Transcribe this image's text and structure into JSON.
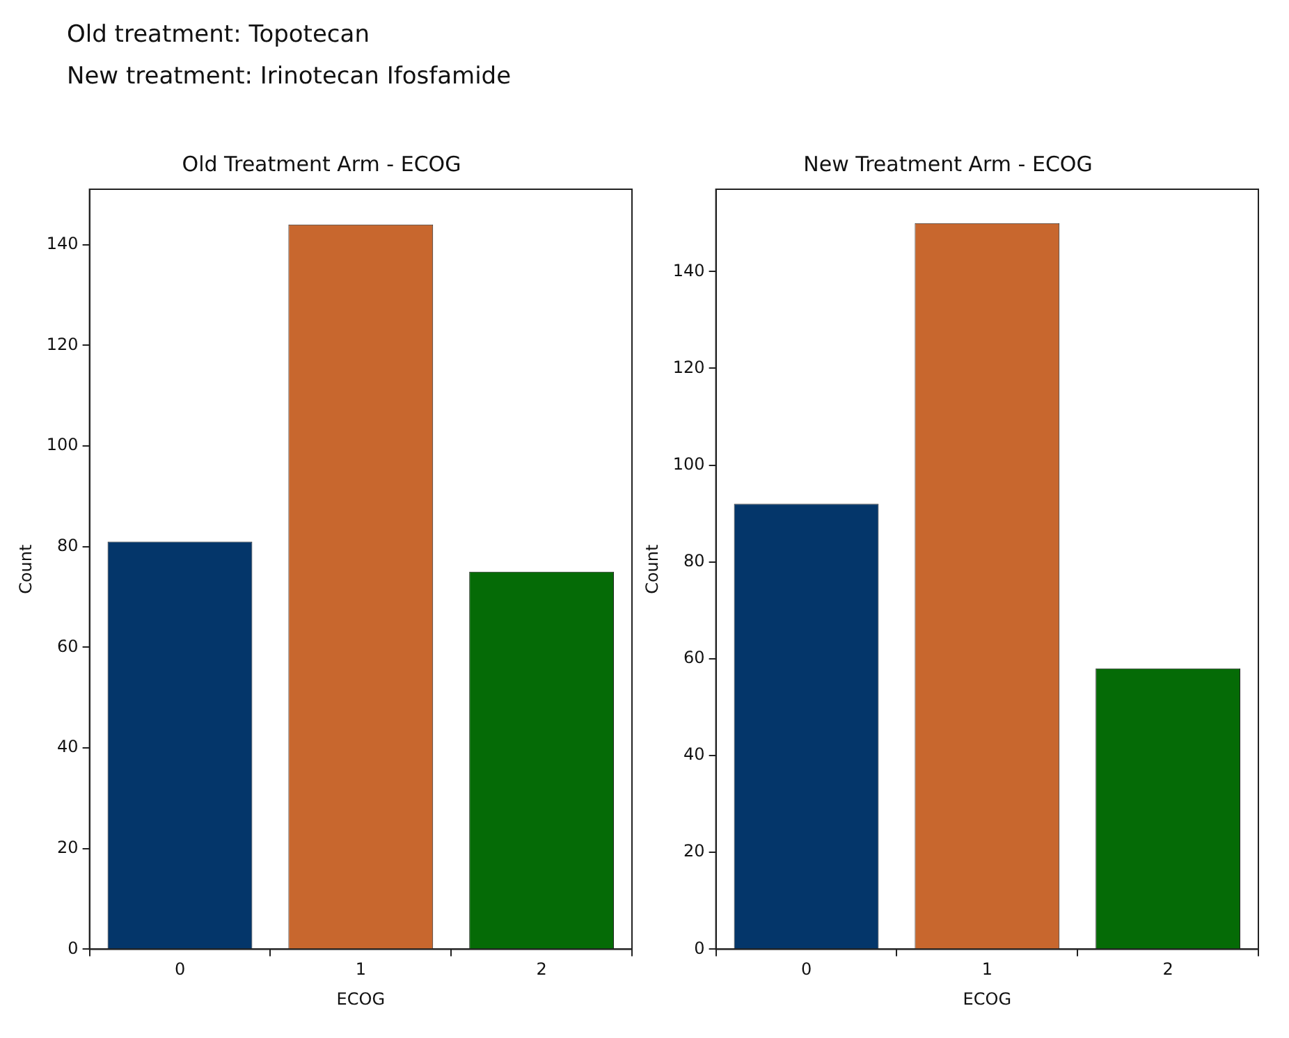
{
  "chart_data": [
    {
      "type": "bar",
      "title": "Old Treatment Arm - ECOG",
      "annotations": [
        "Old treatment: Topotecan",
        "New treatment: Irinotecan Ifosfamide"
      ],
      "xlabel": "ECOG",
      "ylabel": "Count",
      "categories": [
        "0",
        "1",
        "2"
      ],
      "values": [
        81,
        144,
        75
      ],
      "colors": [
        "#04366a",
        "#c8672e",
        "#056b06"
      ],
      "ylim": [
        0,
        151
      ],
      "yticks": [
        0,
        20,
        40,
        60,
        80,
        100,
        120,
        140
      ],
      "grid": false,
      "legend": false
    },
    {
      "type": "bar",
      "title": "New Treatment Arm - ECOG",
      "xlabel": "ECOG",
      "ylabel": "Count",
      "categories": [
        "0",
        "1",
        "2"
      ],
      "values": [
        92,
        150,
        58
      ],
      "colors": [
        "#04366a",
        "#c8672e",
        "#056b06"
      ],
      "ylim": [
        0,
        157
      ],
      "yticks": [
        0,
        20,
        40,
        60,
        80,
        100,
        120,
        140
      ],
      "grid": false,
      "legend": false
    }
  ]
}
